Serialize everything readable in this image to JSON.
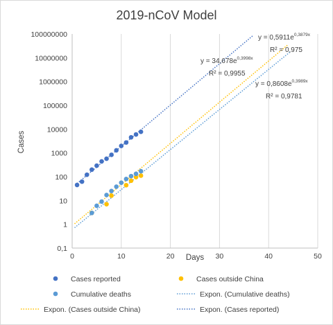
{
  "chart_data": {
    "type": "scatter",
    "title": "2019-nCoV Model",
    "xlabel": "Days",
    "ylabel": "Cases",
    "xlim": [
      0,
      50
    ],
    "ylim": [
      0.1,
      100000000
    ],
    "yscale": "log",
    "grid": "vertical",
    "legend_position": "bottom",
    "x_ticks": [
      "0",
      "10",
      "20",
      "30",
      "40",
      "50"
    ],
    "y_ticks": [
      "0,1",
      "1",
      "10",
      "100",
      "1000",
      "10000",
      "100000",
      "1000000",
      "10000000",
      "100000000"
    ],
    "series": [
      {
        "name": "Cases reported",
        "color": "#4472c4",
        "x": [
          1,
          2,
          3,
          4,
          5,
          6,
          7,
          8,
          9,
          10,
          11,
          12,
          13,
          14
        ],
        "y": [
          45,
          62,
          121,
          198,
          291,
          440,
          571,
          830,
          1287,
          1975,
          2744,
          4515,
          5974,
          7711
        ]
      },
      {
        "name": "Cases outside China",
        "color": "#ffc000",
        "x": [
          4,
          7,
          8,
          11,
          12,
          13,
          14
        ],
        "y": [
          3,
          7,
          16,
          44,
          68,
          96,
          111
        ]
      },
      {
        "name": "Cumulative deaths",
        "color": "#5b9bd5",
        "x": [
          4,
          5,
          6,
          7,
          8,
          9,
          10,
          11,
          12,
          13,
          14
        ],
        "y": [
          3,
          6,
          9,
          17,
          25,
          38,
          56,
          80,
          106,
          132,
          170
        ]
      }
    ],
    "trendlines": [
      {
        "name": "Expon. (Cases reported)",
        "color": "#4472c4",
        "coef": 34.678,
        "rate": 0.3998,
        "x_range": [
          1,
          38
        ],
        "equation": {
          "prefix": "y = 34,678e",
          "exponent": "0,3998x",
          "r2": "R² = 0,9955"
        }
      },
      {
        "name": "Expon. (Cases outside China)",
        "color": "#ffc000",
        "coef": 0.8608,
        "rate": 0.3989,
        "x_range": [
          0.5,
          44
        ],
        "equation": {
          "prefix": "y = 0,8608e",
          "exponent": "0,3989x",
          "r2": "R² = 0,9781"
        }
      },
      {
        "name": "Expon. (Cumulative deaths)",
        "color": "#5b9bd5",
        "coef": 0.5911,
        "rate": 0.3879,
        "x_range": [
          0.5,
          44.5
        ],
        "equation": {
          "prefix": "y = 0,5911e",
          "exponent": "0,3879x",
          "r2": "R² = 0,975"
        }
      }
    ]
  },
  "legend": [
    {
      "label": "Cases reported",
      "kind": "marker",
      "color": "#4472c4"
    },
    {
      "label": "Cases outside China",
      "kind": "marker",
      "color": "#ffc000"
    },
    {
      "label": "Cumulative deaths",
      "kind": "marker",
      "color": "#5b9bd5"
    },
    {
      "label": "Expon. (Cases reported)",
      "kind": "line",
      "color": "#4472c4"
    },
    {
      "label": "Expon. (Cases outside China)",
      "kind": "line",
      "color": "#ffc000"
    },
    {
      "label": "Expon. (Cumulative deaths)",
      "kind": "line",
      "color": "#5b9bd5"
    }
  ]
}
